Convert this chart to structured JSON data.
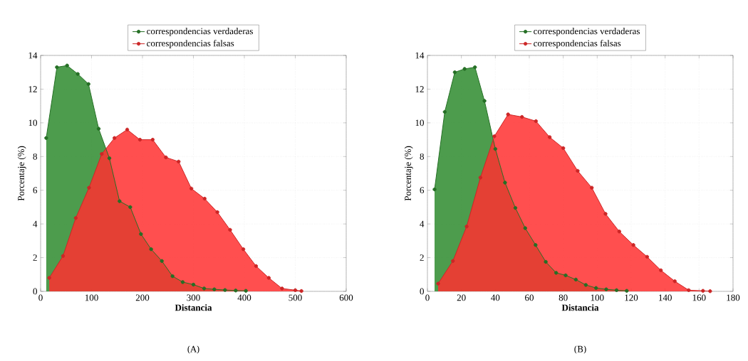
{
  "chart_data": [
    {
      "type": "area",
      "xlabel": "Distancia",
      "ylabel": "Porcentaje (%)",
      "xlim": [
        0,
        600
      ],
      "ylim": [
        0,
        14
      ],
      "xticks": [
        0,
        100,
        200,
        300,
        400,
        500,
        600
      ],
      "yticks": [
        0,
        2,
        4,
        6,
        8,
        10,
        12,
        14
      ],
      "grid": true,
      "legend": "top",
      "marker": "circle",
      "line_style": "solid",
      "annotations": [
        "(A)"
      ],
      "series": [
        {
          "name": "correspondencias verdaderas",
          "color": "#2e8b2e",
          "x": [
            11,
            32,
            52,
            73,
            94,
            114,
            135,
            155,
            176,
            197,
            217,
            238,
            259,
            279,
            300,
            321,
            341,
            362,
            383,
            403
          ],
          "values": [
            9.1,
            13.3,
            13.4,
            12.9,
            12.3,
            9.65,
            7.9,
            5.35,
            5.0,
            3.4,
            2.5,
            1.8,
            0.9,
            0.55,
            0.4,
            0.17,
            0.12,
            0.08,
            0.05,
            0.03
          ]
        },
        {
          "name": "correspondencias falsas",
          "color": "#ff3030",
          "x": [
            17,
            44,
            69,
            95,
            120,
            145,
            170,
            195,
            220,
            246,
            271,
            296,
            322,
            347,
            372,
            398,
            423,
            448,
            474,
            500,
            512
          ],
          "values": [
            0.8,
            2.1,
            4.35,
            6.15,
            8.15,
            9.1,
            9.6,
            9.0,
            9.0,
            7.95,
            7.7,
            6.1,
            5.5,
            4.7,
            3.65,
            2.5,
            1.5,
            0.8,
            0.17,
            0.07,
            0.02
          ]
        }
      ]
    },
    {
      "type": "area",
      "xlabel": "Distancia",
      "ylabel": "Porcentaje (%)",
      "xlim": [
        0,
        180
      ],
      "ylim": [
        0,
        14
      ],
      "xticks": [
        0,
        20,
        40,
        60,
        80,
        100,
        120,
        140,
        160,
        180
      ],
      "yticks": [
        0,
        2,
        4,
        6,
        8,
        10,
        12,
        14
      ],
      "grid": true,
      "legend": "top",
      "marker": "circle",
      "line_style": "solid",
      "annotations": [
        "(B)"
      ],
      "series": [
        {
          "name": "correspondencias verdaderas",
          "color": "#2e8b2e",
          "x": [
            4.2,
            10.2,
            16.1,
            21.9,
            28,
            33.6,
            40,
            45.7,
            51.8,
            57.6,
            63.7,
            69.7,
            75.8,
            81.4,
            87.4,
            93.3,
            99.3,
            105.3,
            111.4,
            117.4
          ],
          "values": [
            6.05,
            10.65,
            13.0,
            13.2,
            13.3,
            11.3,
            8.45,
            6.45,
            4.95,
            3.75,
            2.75,
            1.75,
            1.1,
            0.95,
            0.7,
            0.38,
            0.2,
            0.12,
            0.07,
            0.03
          ]
        },
        {
          "name": "correspondencias falsas",
          "color": "#ff3030",
          "x": [
            6.3,
            15,
            23.1,
            31.2,
            39.4,
            47.5,
            55.7,
            63.9,
            72,
            80,
            88.5,
            96.8,
            104.9,
            113,
            121.3,
            129.4,
            137.5,
            145.7,
            153.9,
            162.3,
            166.5
          ],
          "values": [
            0.46,
            1.8,
            3.85,
            6.75,
            9.2,
            10.5,
            10.35,
            10.1,
            9.15,
            8.5,
            7.15,
            6.15,
            4.6,
            3.55,
            2.75,
            2.05,
            1.25,
            0.6,
            0.07,
            0.03,
            0.01
          ]
        }
      ]
    }
  ]
}
